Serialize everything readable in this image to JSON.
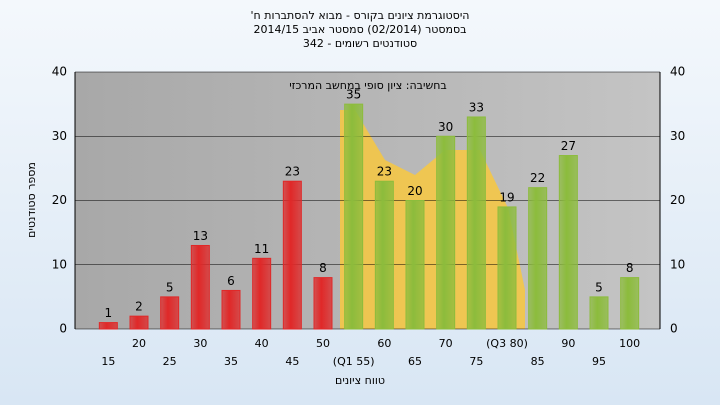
{
  "chart_data": {
    "type": "bar",
    "title": "היסטוגרמת ציונים בקורס - מבוא להסתברות ח'",
    "subtitle": "בסמסטר (02/2014) סמסטר אביב 2014/15",
    "subtitle2": "סטודנטים רשומים - 342",
    "annotation": "בחשיבה: ציון סופי במחשב המרכזי",
    "y_label": "מספר סטודנטים",
    "x_label": "טווח ציונים",
    "categories": [
      "15",
      "20",
      "25",
      "30",
      "35",
      "40",
      "45",
      "50",
      "(Q1 55)",
      "60",
      "65",
      "70",
      "75",
      "(Q3 80)",
      "85",
      "90",
      "95",
      "100"
    ],
    "values": [
      1,
      2,
      5,
      13,
      6,
      11,
      23,
      8,
      35,
      23,
      20,
      30,
      33,
      19,
      22,
      27,
      5,
      8
    ],
    "colors": [
      "#e02828",
      "#e02828",
      "#e02828",
      "#e02828",
      "#e02828",
      "#e02828",
      "#e02828",
      "#e02828",
      "#8cbc3c",
      "#8cbc3c",
      "#8cbc3c",
      "#8cbc3c",
      "#8cbc3c",
      "#8cbc3c",
      "#8cbc3c",
      "#8cbc3c",
      "#8cbc3c",
      "#8cbc3c"
    ],
    "ylim": [
      0,
      40
    ],
    "yticks": [
      0,
      10,
      20,
      30,
      40
    ],
    "grid": true
  }
}
